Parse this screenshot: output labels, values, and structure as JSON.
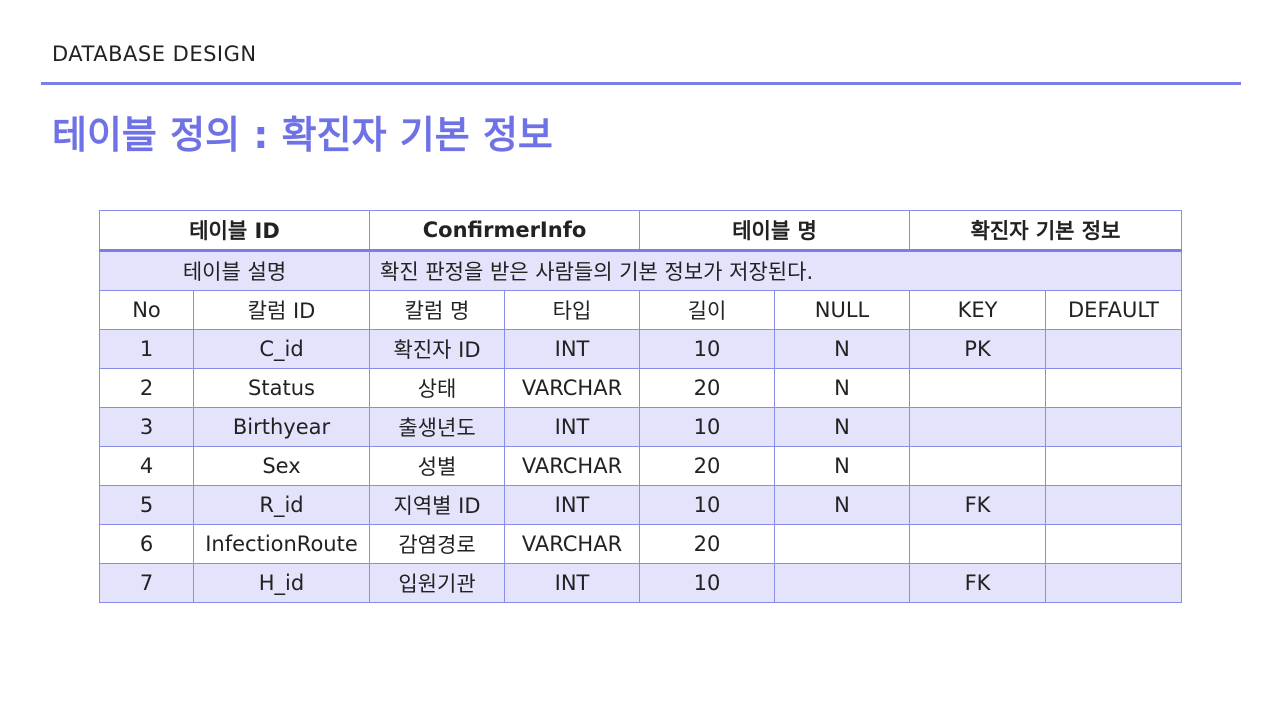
{
  "header": {
    "label": "DATABASE DESIGN"
  },
  "title": "테이블 정의 : 확진자 기본 정보",
  "table": {
    "top": {
      "id_label": "테이블 ID",
      "id_value": "ConfirmerInfo",
      "name_label": "테이블 명",
      "name_value": "확진자 기본 정보"
    },
    "description": {
      "label": "테이블 설명",
      "value": "확진 판정을 받은 사람들의 기본 정보가 저장된다."
    },
    "columns": [
      "No",
      "칼럼 ID",
      "칼럼 명",
      "타입",
      "길이",
      "NULL",
      "KEY",
      "DEFAULT"
    ],
    "rows": [
      [
        "1",
        "C_id",
        "확진자 ID",
        "INT",
        "10",
        "N",
        "PK",
        ""
      ],
      [
        "2",
        "Status",
        "상태",
        "VARCHAR",
        "20",
        "N",
        "",
        ""
      ],
      [
        "3",
        "Birthyear",
        "출생년도",
        "INT",
        "10",
        "N",
        "",
        ""
      ],
      [
        "4",
        "Sex",
        "성별",
        "VARCHAR",
        "20",
        "N",
        "",
        ""
      ],
      [
        "5",
        "R_id",
        "지역별 ID",
        "INT",
        "10",
        "N",
        "FK",
        ""
      ],
      [
        "6",
        "InfectionRoute",
        "감염경로",
        "VARCHAR",
        "20",
        "",
        "",
        ""
      ],
      [
        "7",
        "H_id",
        "입원기관",
        "INT",
        "10",
        "",
        "FK",
        ""
      ]
    ]
  },
  "colors": {
    "accent": "#6f72e6",
    "row_shade": "#e3e3fb",
    "border": "#8a8de8"
  }
}
